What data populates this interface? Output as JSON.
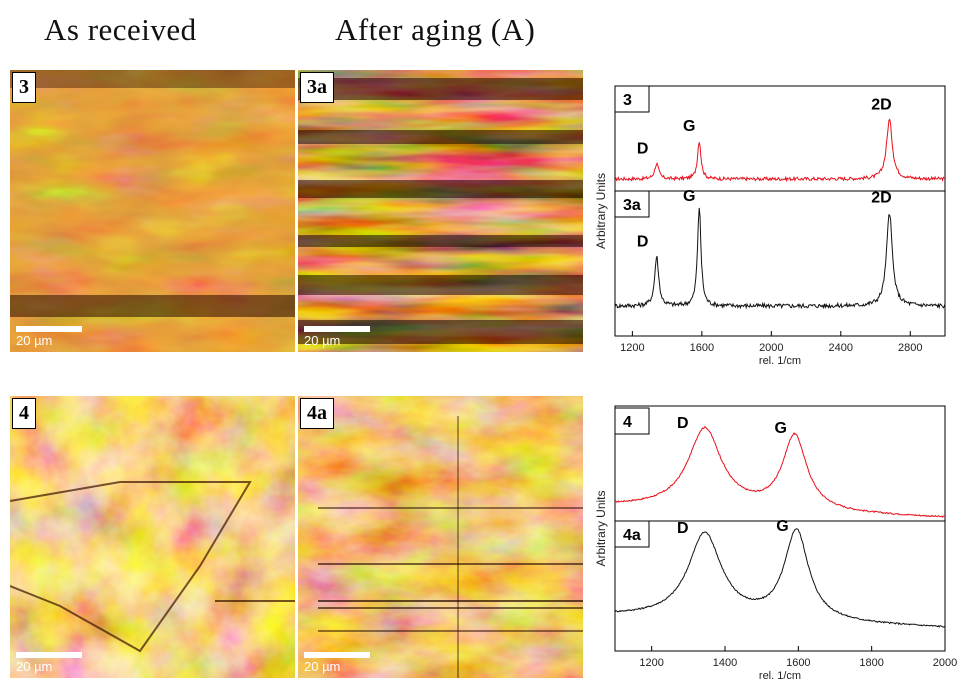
{
  "headings": {
    "as_received": "As received",
    "after_aging": "After aging (A)"
  },
  "images": [
    {
      "label": "3",
      "scale_bar": "20 µm",
      "style": "sample3"
    },
    {
      "label": "3a",
      "scale_bar": "20 µm",
      "style": "sample3a"
    },
    {
      "label": "4",
      "scale_bar": "20 µm",
      "style": "sample4"
    },
    {
      "label": "4a",
      "scale_bar": "20 µm",
      "style": "sample4a"
    }
  ],
  "chart_data": [
    {
      "type": "line",
      "xlabel": "rel. 1/cm",
      "ylabel": "Arbitrary Units",
      "xlim": [
        1100,
        3000
      ],
      "xticks": [
        "1200",
        "1600",
        "2000",
        "2400",
        "2800"
      ],
      "series": [
        {
          "name": "3",
          "color": "#e8101b",
          "peaks": [
            {
              "label": "D",
              "x": 1340,
              "rel_height": 0.18
            },
            {
              "label": "G",
              "x": 1585,
              "rel_height": 0.45
            },
            {
              "label": "2D",
              "x": 2680,
              "rel_height": 0.7
            }
          ]
        },
        {
          "name": "3a",
          "color": "#111111",
          "peaks": [
            {
              "label": "D",
              "x": 1340,
              "rel_height": 0.45
            },
            {
              "label": "G",
              "x": 1585,
              "rel_height": 0.9
            },
            {
              "label": "2D",
              "x": 2680,
              "rel_height": 0.85
            }
          ]
        }
      ]
    },
    {
      "type": "line",
      "xlabel": "rel. 1/cm",
      "ylabel": "Arbitrary Units",
      "xlim": [
        1100,
        2000
      ],
      "xticks": [
        "1200",
        "1400",
        "1600",
        "1800",
        "2000"
      ],
      "series": [
        {
          "name": "4",
          "color": "#e8101b",
          "peaks": [
            {
              "label": "D",
              "x": 1345,
              "rel_height": 0.8
            },
            {
              "label": "G",
              "x": 1590,
              "rel_height": 0.75
            }
          ]
        },
        {
          "name": "4a",
          "color": "#111111",
          "peaks": [
            {
              "label": "D",
              "x": 1345,
              "rel_height": 0.85
            },
            {
              "label": "G",
              "x": 1595,
              "rel_height": 0.9
            }
          ]
        }
      ]
    }
  ]
}
